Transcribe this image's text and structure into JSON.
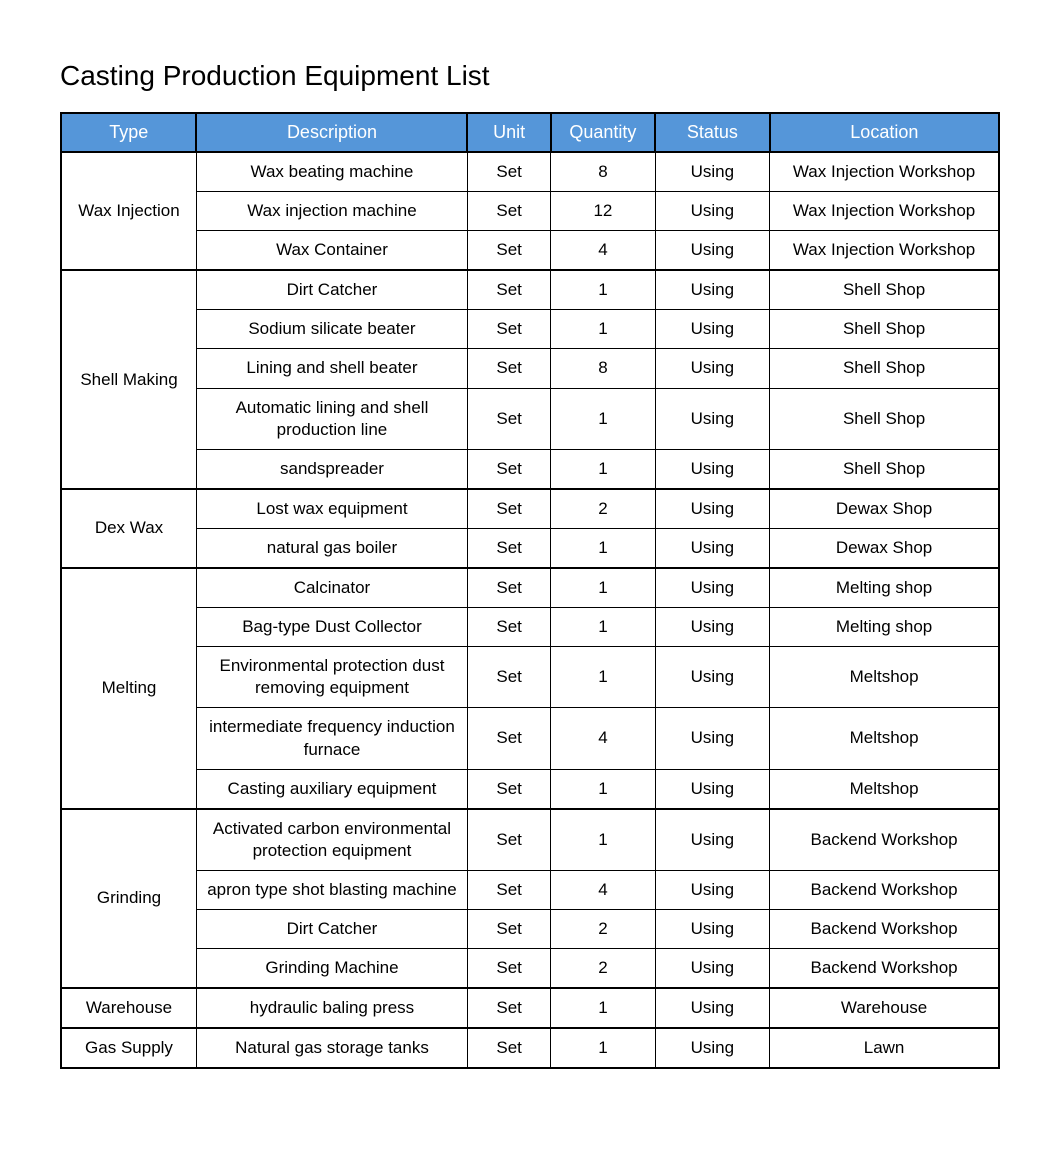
{
  "title": "Casting Production Equipment List",
  "columns": [
    "Type",
    "Description",
    "Unit",
    "Quantity",
    "Status",
    "Location"
  ],
  "header_bg": "#5596d9",
  "header_fg": "#ffffff",
  "border_color": "#000000",
  "background_color": "#ffffff",
  "font_family": "Arial",
  "title_fontsize": 28,
  "header_fontsize": 18,
  "cell_fontsize": 17,
  "col_widths_pct": [
    13,
    26,
    8,
    10,
    11,
    22
  ],
  "groups": [
    {
      "type": "Wax Injection",
      "rows": [
        {
          "description": "Wax beating machine",
          "unit": "Set",
          "quantity": "8",
          "status": "Using",
          "location": "Wax Injection Workshop"
        },
        {
          "description": "Wax injection machine",
          "unit": "Set",
          "quantity": "12",
          "status": "Using",
          "location": "Wax Injection Workshop"
        },
        {
          "description": "Wax Container",
          "unit": "Set",
          "quantity": "4",
          "status": "Using",
          "location": "Wax Injection Workshop"
        }
      ]
    },
    {
      "type": "Shell Making",
      "rows": [
        {
          "description": "Dirt Catcher",
          "unit": "Set",
          "quantity": "1",
          "status": "Using",
          "location": "Shell Shop"
        },
        {
          "description": "Sodium silicate beater",
          "unit": "Set",
          "quantity": "1",
          "status": "Using",
          "location": "Shell Shop"
        },
        {
          "description": "Lining and shell beater",
          "unit": "Set",
          "quantity": "8",
          "status": "Using",
          "location": "Shell Shop"
        },
        {
          "description": "Automatic lining and shell production line",
          "unit": "Set",
          "quantity": "1",
          "status": "Using",
          "location": "Shell Shop"
        },
        {
          "description": "sandspreader",
          "unit": "Set",
          "quantity": "1",
          "status": "Using",
          "location": "Shell Shop"
        }
      ]
    },
    {
      "type": "Dex Wax",
      "rows": [
        {
          "description": "Lost wax equipment",
          "unit": "Set",
          "quantity": "2",
          "status": "Using",
          "location": "Dewax Shop"
        },
        {
          "description": "natural gas boiler",
          "unit": "Set",
          "quantity": "1",
          "status": "Using",
          "location": "Dewax Shop"
        }
      ]
    },
    {
      "type": "Melting",
      "rows": [
        {
          "description": "Calcinator",
          "unit": "Set",
          "quantity": "1",
          "status": "Using",
          "location": "Melting shop"
        },
        {
          "description": "Bag-type Dust Collector",
          "unit": "Set",
          "quantity": "1",
          "status": "Using",
          "location": "Melting shop"
        },
        {
          "description": "Environmental protection dust removing equipment",
          "unit": "Set",
          "quantity": "1",
          "status": "Using",
          "location": "Meltshop"
        },
        {
          "description": "intermediate frequency induction furnace",
          "unit": "Set",
          "quantity": "4",
          "status": "Using",
          "location": "Meltshop"
        },
        {
          "description": "Casting auxiliary equipment",
          "unit": "Set",
          "quantity": "1",
          "status": "Using",
          "location": "Meltshop"
        }
      ]
    },
    {
      "type": "Grinding",
      "rows": [
        {
          "description": "Activated carbon environmental protection equipment",
          "unit": "Set",
          "quantity": "1",
          "status": "Using",
          "location": "Backend Workshop"
        },
        {
          "description": "apron type shot blasting machine",
          "unit": "Set",
          "quantity": "4",
          "status": "Using",
          "location": "Backend Workshop"
        },
        {
          "description": "Dirt Catcher",
          "unit": "Set",
          "quantity": "2",
          "status": "Using",
          "location": "Backend Workshop"
        },
        {
          "description": "Grinding Machine",
          "unit": "Set",
          "quantity": "2",
          "status": "Using",
          "location": "Backend Workshop"
        }
      ]
    },
    {
      "type": "Warehouse",
      "rows": [
        {
          "description": "hydraulic baling press",
          "unit": "Set",
          "quantity": "1",
          "status": "Using",
          "location": "Warehouse"
        }
      ]
    },
    {
      "type": "Gas Supply",
      "rows": [
        {
          "description": "Natural gas storage tanks",
          "unit": "Set",
          "quantity": "1",
          "status": "Using",
          "location": "Lawn"
        }
      ]
    }
  ]
}
